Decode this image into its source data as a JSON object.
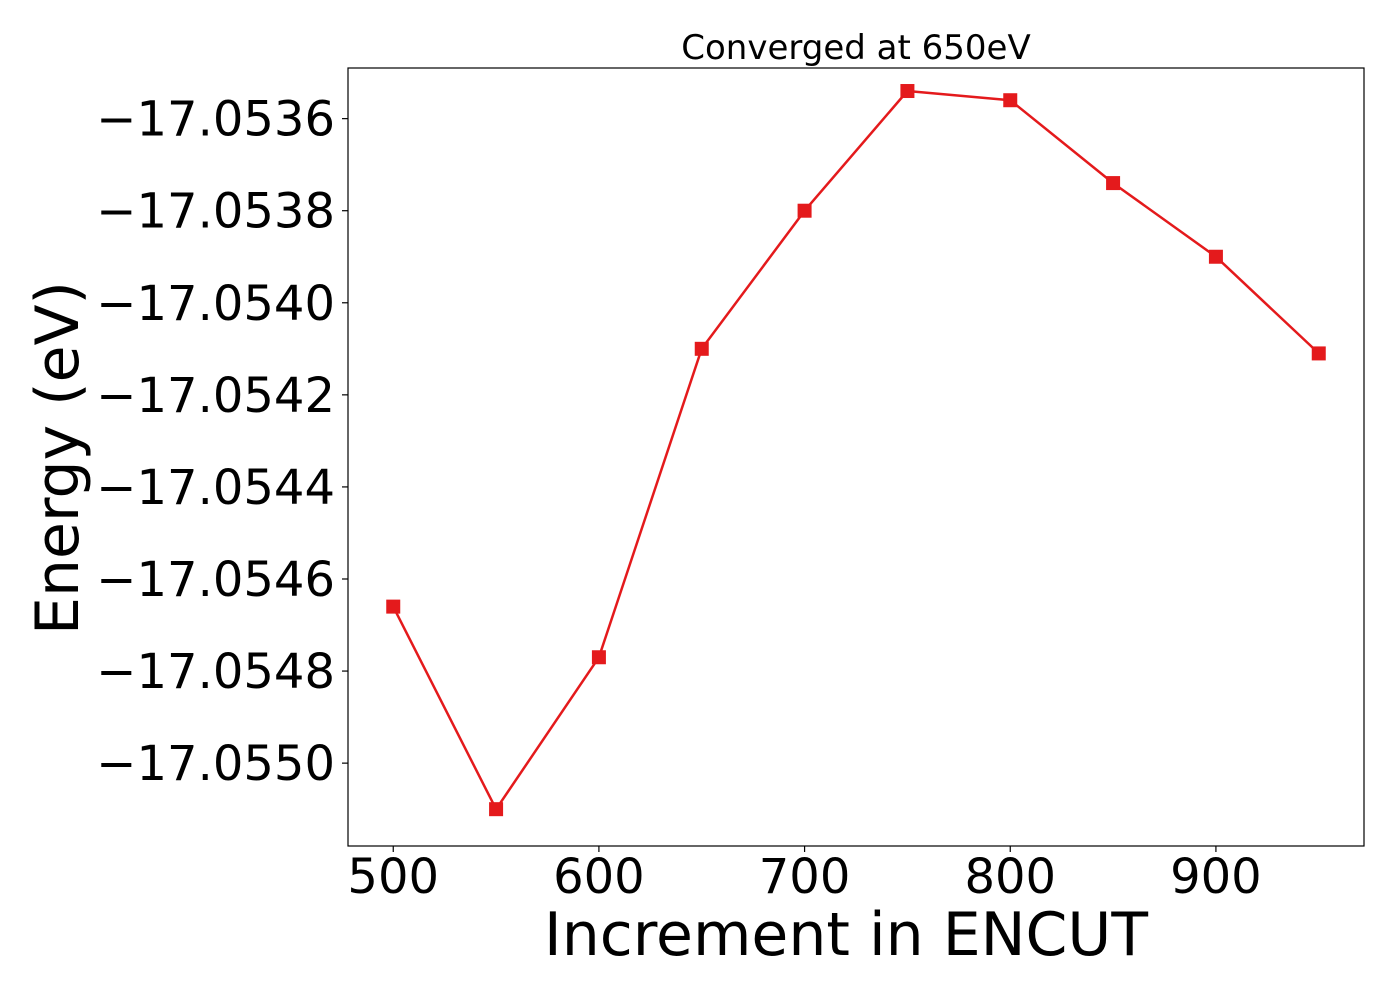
{
  "chart_data": {
    "type": "line",
    "title": "Converged at 650eV",
    "xlabel": "Increment in ENCUT",
    "ylabel": "Energy (eV)",
    "xlim": [
      478,
      972
    ],
    "ylim": [
      -17.05518,
      -17.05349
    ],
    "xticks": [
      500,
      600,
      700,
      800,
      900
    ],
    "xtick_labels": [
      "500",
      "600",
      "700",
      "800",
      "900"
    ],
    "yticks": [
      -17.055,
      -17.0548,
      -17.0546,
      -17.0544,
      -17.0542,
      -17.054,
      -17.0538,
      -17.0536
    ],
    "ytick_labels": [
      "−17.0550",
      "−17.0548",
      "−17.0546",
      "−17.0544",
      "−17.0542",
      "−17.0540",
      "−17.0538",
      "−17.0536"
    ],
    "grid": false,
    "series": [
      {
        "color": "#e41a1c",
        "marker": "square",
        "x": [
          500,
          550,
          600,
          650,
          700,
          750,
          800,
          850,
          900,
          950
        ],
        "y": [
          -17.05466,
          -17.0551,
          -17.05477,
          -17.0541,
          -17.0538,
          -17.05354,
          -17.05356,
          -17.05374,
          -17.0539,
          -17.05411
        ]
      }
    ]
  }
}
